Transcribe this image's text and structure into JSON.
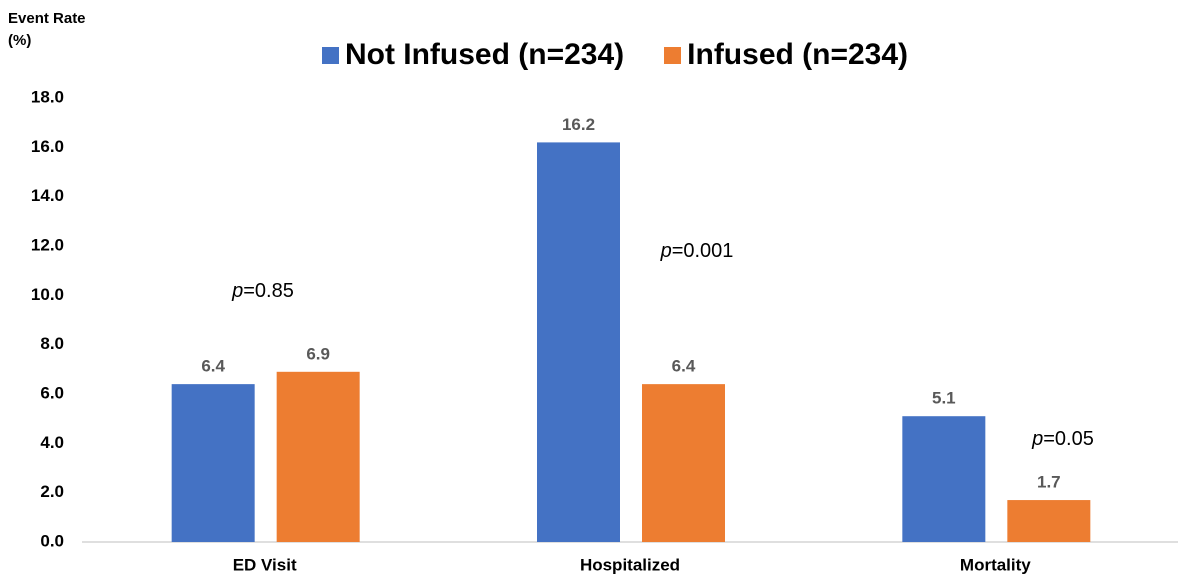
{
  "chart_data": {
    "type": "bar",
    "y_label": "Event Rate (%)",
    "categories": [
      "ED Visit",
      "Hospitalized",
      "Mortality"
    ],
    "series": [
      {
        "name": "Not Infused (n=234)",
        "color": "#4472c4",
        "values": [
          6.4,
          16.2,
          5.1
        ]
      },
      {
        "name": "Infused (n=234)",
        "color": "#ed7d31",
        "values": [
          6.9,
          6.4,
          1.7
        ]
      }
    ],
    "ylim": [
      0,
      18
    ],
    "yticks": [
      {
        "value": 0,
        "label": "0.0"
      },
      {
        "value": 2,
        "label": "2.0"
      },
      {
        "value": 4,
        "label": "4.0"
      },
      {
        "value": 6,
        "label": "6.0"
      },
      {
        "value": 8,
        "label": "8.0"
      },
      {
        "value": 10,
        "label": "10.0"
      },
      {
        "value": 12,
        "label": "12.0"
      },
      {
        "value": 14,
        "label": "14.0"
      },
      {
        "value": 16,
        "label": "16.0"
      },
      {
        "value": 18,
        "label": "18.0"
      }
    ],
    "annotations": [
      "p=0.85",
      "p=0.001",
      "p=0.05"
    ],
    "legend_position": "top",
    "grid": false
  }
}
